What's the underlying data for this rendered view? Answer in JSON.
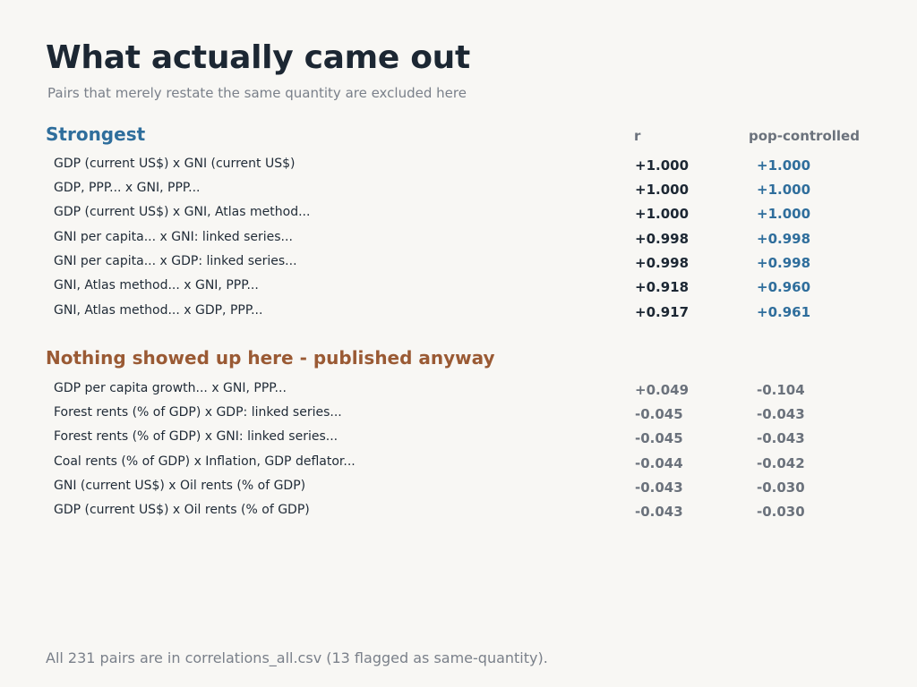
{
  "title": "What actually came out",
  "subtitle": "Pairs that merely restate the same quantity are excluded here",
  "columns": {
    "r": "r",
    "pop_controlled": "pop-controlled"
  },
  "strongest": {
    "heading": "Strongest",
    "color": "#2f6e9c",
    "rows": [
      {
        "pair": "GDP (current US$) x GNI (current US$)",
        "r": "+1.000",
        "pop": "+1.000"
      },
      {
        "pair": "GDP, PPP... x GNI, PPP...",
        "r": "+1.000",
        "pop": "+1.000"
      },
      {
        "pair": "GDP (current US$) x GNI, Atlas method...",
        "r": "+1.000",
        "pop": "+1.000"
      },
      {
        "pair": "GNI per capita... x GNI: linked series...",
        "r": "+0.998",
        "pop": "+0.998"
      },
      {
        "pair": "GNI per capita... x GDP: linked series...",
        "r": "+0.998",
        "pop": "+0.998"
      },
      {
        "pair": "GNI, Atlas method... x GNI, PPP...",
        "r": "+0.918",
        "pop": "+0.960"
      },
      {
        "pair": "GNI, Atlas method... x GDP, PPP...",
        "r": "+0.917",
        "pop": "+0.961"
      }
    ]
  },
  "nothing": {
    "heading": "Nothing showed up here - published anyway",
    "color": "#9a5a34",
    "rows": [
      {
        "pair": "GDP per capita growth... x GNI, PPP...",
        "r": "+0.049",
        "pop": "-0.104"
      },
      {
        "pair": "Forest rents (% of GDP) x GDP: linked series...",
        "r": "-0.045",
        "pop": "-0.043"
      },
      {
        "pair": "Forest rents (% of GDP) x GNI: linked series...",
        "r": "-0.045",
        "pop": "-0.043"
      },
      {
        "pair": "Coal rents (% of GDP) x Inflation, GDP deflator...",
        "r": "-0.044",
        "pop": "-0.042"
      },
      {
        "pair": "GNI (current US$) x Oil rents (% of GDP)",
        "r": "-0.043",
        "pop": "-0.030"
      },
      {
        "pair": "GDP (current US$) x Oil rents (% of GDP)",
        "r": "-0.043",
        "pop": "-0.030"
      }
    ]
  },
  "footer": "All 231 pairs are in correlations_all.csv (13 flagged as same-quantity)."
}
